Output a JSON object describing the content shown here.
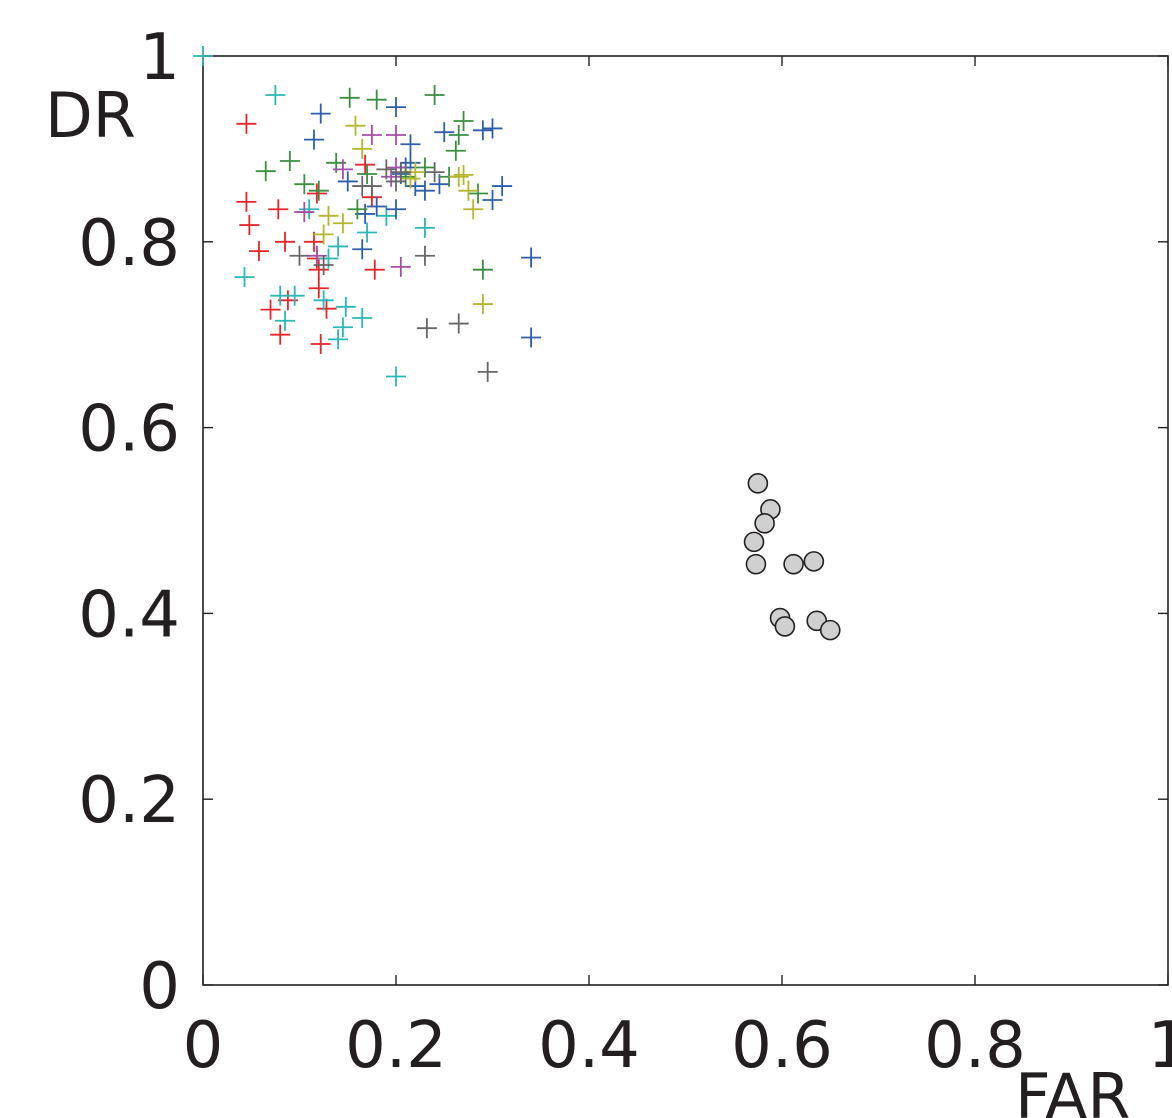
{
  "chart_data": {
    "type": "scatter",
    "title": "",
    "xlabel": "FAR",
    "ylabel": "DR",
    "xlim": [
      0,
      1
    ],
    "ylim": [
      0,
      1
    ],
    "xticks": [
      "0",
      "0.2",
      "0.4",
      "0.6",
      "0.8",
      "1"
    ],
    "yticks": [
      "0",
      "0.2",
      "0.4",
      "0.6",
      "0.8",
      "1"
    ],
    "grid": false,
    "series": [
      {
        "marker": "plus",
        "color": "#e8262a",
        "points": [
          [
            0.045,
            0.927
          ],
          [
            0.045,
            0.843
          ],
          [
            0.048,
            0.818
          ],
          [
            0.058,
            0.79
          ],
          [
            0.078,
            0.835
          ],
          [
            0.085,
            0.8
          ],
          [
            0.088,
            0.737
          ],
          [
            0.07,
            0.727
          ],
          [
            0.08,
            0.7
          ],
          [
            0.115,
            0.8
          ],
          [
            0.118,
            0.782
          ],
          [
            0.12,
            0.77
          ],
          [
            0.12,
            0.75
          ],
          [
            0.122,
            0.69
          ],
          [
            0.128,
            0.728
          ],
          [
            0.118,
            0.852
          ],
          [
            0.178,
            0.77
          ],
          [
            0.175,
            0.848
          ],
          [
            0.168,
            0.883
          ]
        ]
      },
      {
        "marker": "plus",
        "color": "#2ab7b7",
        "points": [
          [
            0.0,
            1.0
          ],
          [
            0.075,
            0.958
          ],
          [
            0.043,
            0.762
          ],
          [
            0.08,
            0.742
          ],
          [
            0.095,
            0.742
          ],
          [
            0.085,
            0.715
          ],
          [
            0.125,
            0.737
          ],
          [
            0.148,
            0.73
          ],
          [
            0.145,
            0.708
          ],
          [
            0.14,
            0.695
          ],
          [
            0.165,
            0.718
          ],
          [
            0.2,
            0.655
          ],
          [
            0.23,
            0.815
          ],
          [
            0.14,
            0.795
          ],
          [
            0.13,
            0.782
          ],
          [
            0.19,
            0.828
          ],
          [
            0.17,
            0.81
          ],
          [
            0.11,
            0.835
          ]
        ]
      },
      {
        "marker": "plus",
        "color": "#2e5eaa",
        "points": [
          [
            0.122,
            0.938
          ],
          [
            0.2,
            0.945
          ],
          [
            0.115,
            0.91
          ],
          [
            0.215,
            0.905
          ],
          [
            0.25,
            0.918
          ],
          [
            0.29,
            0.92
          ],
          [
            0.3,
            0.922
          ],
          [
            0.215,
            0.885
          ],
          [
            0.205,
            0.873
          ],
          [
            0.23,
            0.855
          ],
          [
            0.245,
            0.862
          ],
          [
            0.3,
            0.845
          ],
          [
            0.31,
            0.86
          ],
          [
            0.34,
            0.783
          ],
          [
            0.34,
            0.697
          ],
          [
            0.15,
            0.865
          ],
          [
            0.18,
            0.838
          ],
          [
            0.168,
            0.83
          ],
          [
            0.2,
            0.835
          ],
          [
            0.165,
            0.792
          ],
          [
            0.21,
            0.88
          ],
          [
            0.22,
            0.86
          ]
        ]
      },
      {
        "marker": "plus",
        "color": "#3a8f3e",
        "points": [
          [
            0.152,
            0.955
          ],
          [
            0.18,
            0.953
          ],
          [
            0.24,
            0.958
          ],
          [
            0.27,
            0.93
          ],
          [
            0.265,
            0.915
          ],
          [
            0.262,
            0.898
          ],
          [
            0.09,
            0.887
          ],
          [
            0.065,
            0.876
          ],
          [
            0.105,
            0.862
          ],
          [
            0.138,
            0.885
          ],
          [
            0.17,
            0.873
          ],
          [
            0.21,
            0.87
          ],
          [
            0.285,
            0.852
          ],
          [
            0.29,
            0.77
          ],
          [
            0.12,
            0.855
          ],
          [
            0.16,
            0.835
          ],
          [
            0.23,
            0.88
          ],
          [
            0.255,
            0.87
          ]
        ]
      },
      {
        "marker": "plus",
        "color": "#b5b52e",
        "points": [
          [
            0.158,
            0.925
          ],
          [
            0.165,
            0.9
          ],
          [
            0.27,
            0.872
          ],
          [
            0.275,
            0.855
          ],
          [
            0.28,
            0.835
          ],
          [
            0.29,
            0.733
          ],
          [
            0.125,
            0.808
          ],
          [
            0.13,
            0.828
          ],
          [
            0.145,
            0.82
          ],
          [
            0.215,
            0.868
          ],
          [
            0.265,
            0.87
          ],
          [
            0.22,
            0.875
          ]
        ]
      },
      {
        "marker": "plus",
        "color": "#a44ea8",
        "points": [
          [
            0.175,
            0.915
          ],
          [
            0.2,
            0.915
          ],
          [
            0.105,
            0.832
          ],
          [
            0.118,
            0.785
          ],
          [
            0.205,
            0.773
          ],
          [
            0.195,
            0.87
          ],
          [
            0.145,
            0.878
          ],
          [
            0.2,
            0.88
          ]
        ]
      },
      {
        "marker": "plus",
        "color": "#666666",
        "points": [
          [
            0.232,
            0.707
          ],
          [
            0.265,
            0.712
          ],
          [
            0.295,
            0.66
          ],
          [
            0.23,
            0.785
          ],
          [
            0.1,
            0.785
          ],
          [
            0.125,
            0.775
          ],
          [
            0.175,
            0.86
          ],
          [
            0.2,
            0.865
          ],
          [
            0.205,
            0.875
          ],
          [
            0.19,
            0.878
          ],
          [
            0.165,
            0.86
          ],
          [
            0.24,
            0.875
          ]
        ]
      },
      {
        "marker": "circle",
        "color": "#d0d0d0",
        "points": [
          [
            0.575,
            0.54
          ],
          [
            0.588,
            0.512
          ],
          [
            0.582,
            0.497
          ],
          [
            0.571,
            0.477
          ],
          [
            0.573,
            0.453
          ],
          [
            0.612,
            0.453
          ],
          [
            0.633,
            0.456
          ],
          [
            0.598,
            0.395
          ],
          [
            0.603,
            0.386
          ],
          [
            0.636,
            0.392
          ],
          [
            0.65,
            0.382
          ]
        ]
      }
    ]
  }
}
